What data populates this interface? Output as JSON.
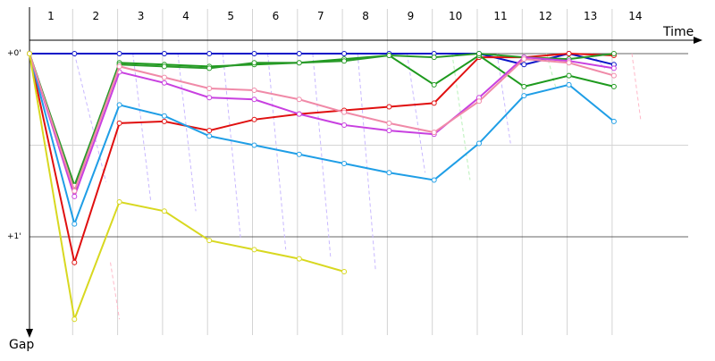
{
  "chart_data": {
    "type": "line",
    "title": "",
    "xlabel": "Time",
    "ylabel": "Gap",
    "x_categories": [
      "1",
      "2",
      "3",
      "4",
      "5",
      "6",
      "7",
      "8",
      "9",
      "10",
      "11",
      "12",
      "13",
      "14"
    ],
    "y_ticks": [
      {
        "label": "+0'",
        "value": 0
      },
      {
        "label": "+1'",
        "value": 1
      }
    ],
    "ylim": [
      0,
      1.45
    ],
    "y_inverted": true,
    "grid": true,
    "series": [
      {
        "color": "#0a14c8",
        "values": [
          0,
          0,
          0,
          0,
          0,
          0,
          0,
          0,
          0,
          0,
          0,
          0.06,
          0.0,
          0.06
        ]
      },
      {
        "color": "#e01010",
        "values": [
          0,
          1.14,
          0.38,
          0.37,
          0.42,
          0.36,
          0.33,
          0.31,
          0.29,
          0.27,
          0.02,
          0.02,
          0.0,
          0.01
        ]
      },
      {
        "color": "#1e9a1e",
        "values": [
          0,
          0.73,
          0.05,
          0.06,
          0.07,
          0.06,
          0.05,
          0.03,
          0.01,
          0.17,
          0.01,
          0.18,
          0.12,
          0.18
        ]
      },
      {
        "color": "#2a9a2a",
        "values": [
          0,
          0.72,
          0.06,
          0.07,
          0.08,
          0.05,
          0.05,
          0.04,
          0.01,
          0.02,
          0.0,
          0.02,
          0.03,
          0.0
        ]
      },
      {
        "color": "#1f9ee6",
        "values": [
          0,
          0.93,
          0.28,
          0.34,
          0.45,
          0.5,
          0.55,
          0.6,
          0.65,
          0.69,
          0.49,
          0.23,
          0.17,
          0.37
        ]
      },
      {
        "color": "#c840e0",
        "values": [
          0,
          0.78,
          0.1,
          0.16,
          0.24,
          0.25,
          0.33,
          0.39,
          0.42,
          0.44,
          0.24,
          0.02,
          0.04,
          0.08
        ]
      },
      {
        "color": "#f08aa8",
        "values": [
          0,
          0.75,
          0.07,
          0.13,
          0.19,
          0.2,
          0.25,
          0.32,
          0.38,
          0.43,
          0.26,
          0.03,
          0.05,
          0.12
        ]
      },
      {
        "color": "#d8d820",
        "values": [
          0,
          1.45,
          0.81,
          0.86,
          1.02,
          1.07,
          1.12,
          1.19
        ]
      }
    ]
  }
}
